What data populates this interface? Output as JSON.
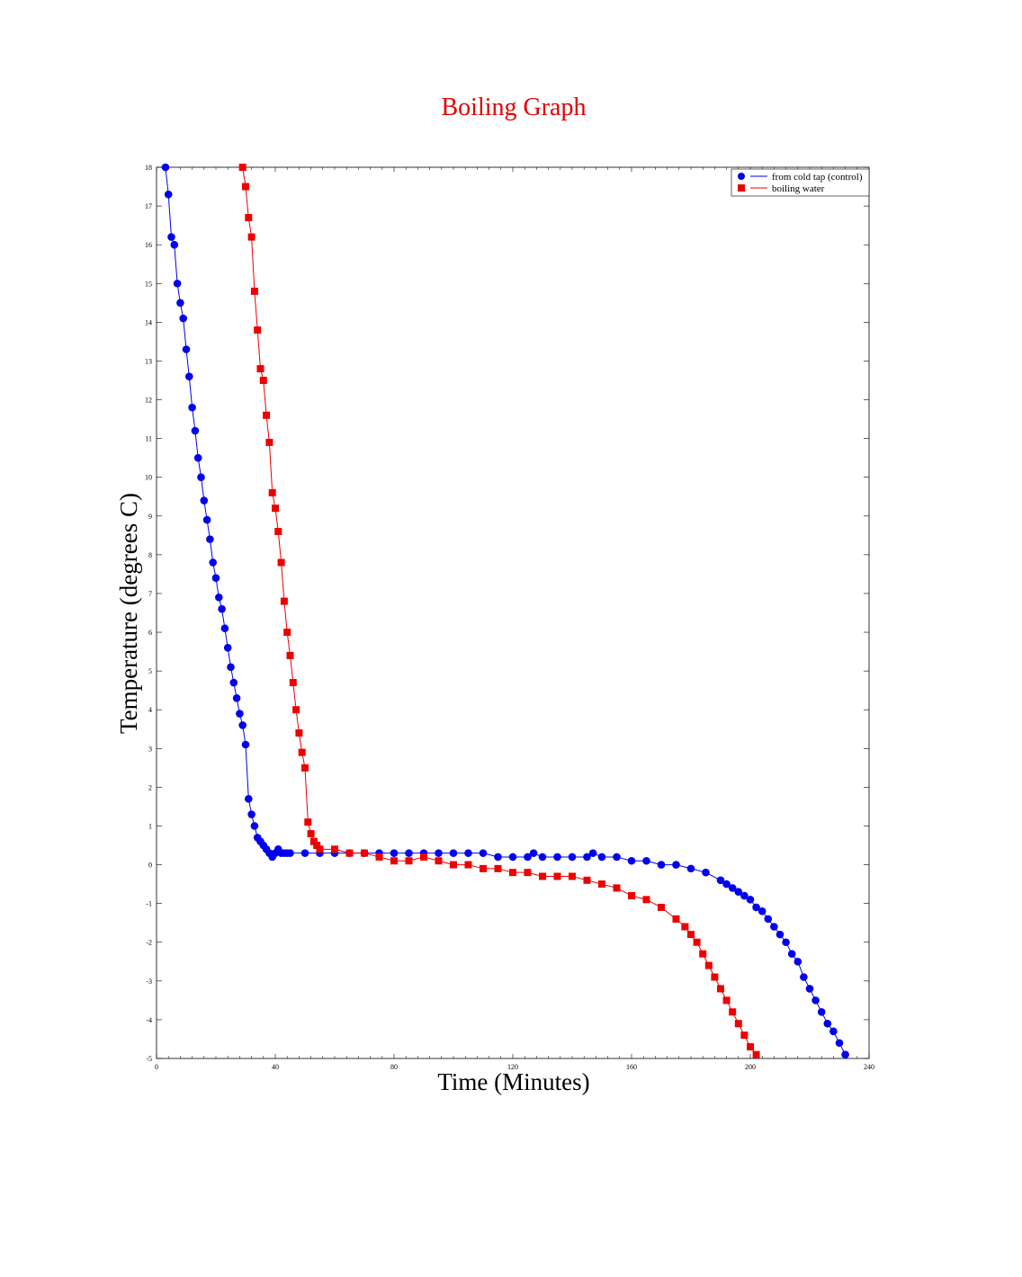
{
  "colors": {
    "blue": "#0000ee",
    "red": "#ee0000",
    "title": "#e00000"
  },
  "chart_data": {
    "type": "line",
    "title": "Boiling Graph",
    "xlabel": "Time (Minutes)",
    "ylabel": "Temperature (degrees C)",
    "xlim": [
      0,
      240
    ],
    "ylim": [
      -5,
      18
    ],
    "xticks": [
      0,
      40,
      80,
      120,
      160,
      200,
      240
    ],
    "yticks": [
      -5,
      -4,
      -3,
      -2,
      -1,
      0,
      1,
      2,
      3,
      4,
      5,
      6,
      7,
      8,
      9,
      10,
      11,
      12,
      13,
      14,
      15,
      16,
      17,
      18
    ],
    "grid": false,
    "legend_position": "top-right",
    "series": [
      {
        "name": "from cold tap (control)",
        "color": "#0000ee",
        "marker": "circle",
        "x": [
          3,
          4,
          5,
          6,
          7,
          8,
          9,
          10,
          11,
          12,
          13,
          14,
          15,
          16,
          17,
          18,
          19,
          20,
          21,
          22,
          23,
          24,
          25,
          26,
          27,
          28,
          29,
          30,
          31,
          32,
          33,
          34,
          35,
          36,
          37,
          38,
          39,
          40,
          41,
          42,
          43,
          44,
          45,
          50,
          55,
          60,
          65,
          70,
          75,
          80,
          85,
          90,
          95,
          100,
          105,
          110,
          115,
          120,
          125,
          127,
          130,
          135,
          140,
          145,
          147,
          150,
          155,
          160,
          165,
          170,
          175,
          180,
          185,
          190,
          192,
          194,
          196,
          198,
          200,
          202,
          204,
          206,
          208,
          210,
          212,
          214,
          216,
          218,
          220,
          222,
          224,
          226,
          228,
          230,
          232
        ],
        "y": [
          18,
          17.3,
          16.2,
          16,
          15,
          14.5,
          14.1,
          13.3,
          12.6,
          11.8,
          11.2,
          10.5,
          10,
          9.4,
          8.9,
          8.4,
          7.8,
          7.4,
          6.9,
          6.6,
          6.1,
          5.6,
          5.1,
          4.7,
          4.3,
          3.9,
          3.6,
          3.1,
          1.7,
          1.3,
          1.0,
          0.7,
          0.6,
          0.5,
          0.4,
          0.3,
          0.2,
          0.3,
          0.4,
          0.3,
          0.3,
          0.3,
          0.3,
          0.3,
          0.3,
          0.3,
          0.3,
          0.3,
          0.3,
          0.3,
          0.3,
          0.3,
          0.3,
          0.3,
          0.3,
          0.3,
          0.2,
          0.2,
          0.2,
          0.3,
          0.2,
          0.2,
          0.2,
          0.2,
          0.3,
          0.2,
          0.2,
          0.1,
          0.1,
          0,
          0,
          -0.1,
          -0.2,
          -0.4,
          -0.5,
          -0.6,
          -0.7,
          -0.8,
          -0.9,
          -1.1,
          -1.2,
          -1.4,
          -1.6,
          -1.8,
          -2.0,
          -2.3,
          -2.5,
          -2.9,
          -3.2,
          -3.5,
          -3.8,
          -4.1,
          -4.3,
          -4.6,
          -4.9
        ]
      },
      {
        "name": "boiling water",
        "color": "#ee0000",
        "marker": "square",
        "x": [
          29,
          30,
          31,
          32,
          33,
          34,
          35,
          36,
          37,
          38,
          39,
          40,
          41,
          42,
          43,
          44,
          45,
          46,
          47,
          48,
          49,
          50,
          51,
          52,
          53,
          54,
          55,
          60,
          65,
          70,
          75,
          80,
          85,
          90,
          95,
          100,
          105,
          110,
          115,
          120,
          125,
          130,
          135,
          140,
          145,
          150,
          155,
          160,
          165,
          170,
          175,
          178,
          180,
          182,
          184,
          186,
          188,
          190,
          192,
          194,
          196,
          198,
          200,
          202
        ],
        "y": [
          18,
          17.5,
          16.7,
          16.2,
          14.8,
          13.8,
          12.8,
          12.5,
          11.6,
          10.9,
          9.6,
          9.2,
          8.6,
          7.8,
          6.8,
          6.0,
          5.4,
          4.7,
          4.0,
          3.4,
          2.9,
          2.5,
          1.1,
          0.8,
          0.6,
          0.5,
          0.4,
          0.4,
          0.3,
          0.3,
          0.2,
          0.1,
          0.1,
          0.2,
          0.1,
          0,
          0,
          -0.1,
          -0.1,
          -0.2,
          -0.2,
          -0.3,
          -0.3,
          -0.3,
          -0.4,
          -0.5,
          -0.6,
          -0.8,
          -0.9,
          -1.1,
          -1.4,
          -1.6,
          -1.8,
          -2.0,
          -2.3,
          -2.6,
          -2.9,
          -3.2,
          -3.5,
          -3.8,
          -4.1,
          -4.4,
          -4.7,
          -4.9
        ]
      }
    ]
  }
}
